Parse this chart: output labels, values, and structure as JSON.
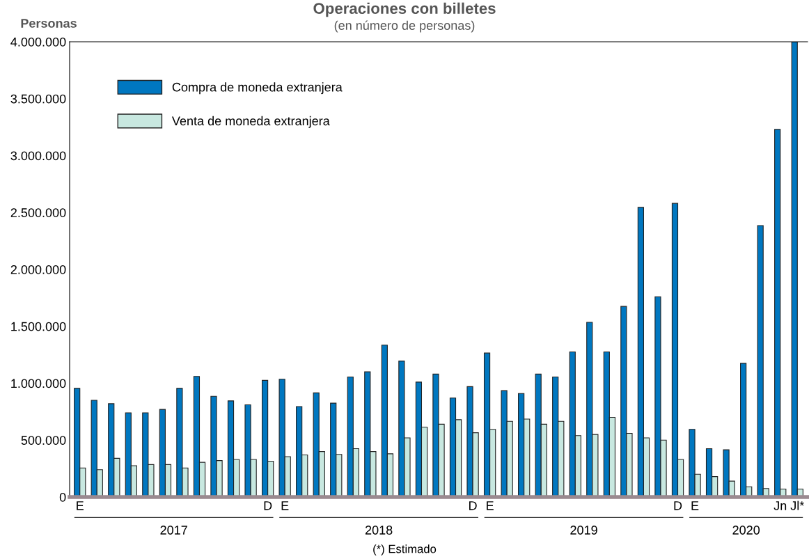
{
  "chart_data": {
    "type": "bar",
    "title": "Operaciones con billetes",
    "subtitle": "(en número de personas)",
    "ylabel": "Personas",
    "categories": [
      "E",
      null,
      null,
      null,
      null,
      null,
      null,
      null,
      null,
      null,
      null,
      "D",
      "E",
      null,
      null,
      null,
      null,
      null,
      null,
      null,
      null,
      null,
      null,
      "D",
      "E",
      null,
      null,
      null,
      null,
      null,
      null,
      null,
      null,
      null,
      null,
      "D",
      "E",
      null,
      null,
      null,
      null,
      "Jn",
      "Jl*"
    ],
    "series": [
      {
        "name": "Compra de moneda extranjera",
        "color": "#0077c0",
        "values": [
          955000,
          850000,
          820000,
          740000,
          740000,
          770000,
          955000,
          1060000,
          885000,
          845000,
          810000,
          1025000,
          1035000,
          795000,
          915000,
          825000,
          1055000,
          1100000,
          1335000,
          1195000,
          1010000,
          1080000,
          870000,
          970000,
          1265000,
          935000,
          910000,
          1080000,
          1055000,
          1275000,
          1535000,
          1275000,
          1675000,
          2545000,
          1760000,
          2580000,
          595000,
          425000,
          415000,
          1175000,
          2385000,
          3230000,
          4000000
        ]
      },
      {
        "name": "Venta de moneda extranjera",
        "color": "#c8e8e0",
        "values": [
          255000,
          240000,
          340000,
          275000,
          285000,
          285000,
          255000,
          305000,
          320000,
          330000,
          330000,
          315000,
          355000,
          370000,
          400000,
          375000,
          425000,
          400000,
          380000,
          520000,
          615000,
          640000,
          680000,
          565000,
          595000,
          665000,
          685000,
          640000,
          665000,
          540000,
          550000,
          700000,
          560000,
          520000,
          500000,
          330000,
          200000,
          180000,
          140000,
          90000,
          75000,
          70000,
          70000
        ]
      }
    ],
    "ylim": [
      0,
      4000000
    ],
    "yticks": [
      {
        "value": 0,
        "label": "0"
      },
      {
        "value": 500000,
        "label": "500.000"
      },
      {
        "value": 1000000,
        "label": "1.000.000"
      },
      {
        "value": 1500000,
        "label": "1.500.000"
      },
      {
        "value": 2000000,
        "label": "2.000.000"
      },
      {
        "value": 2500000,
        "label": "2.500.000"
      },
      {
        "value": 3000000,
        "label": "3.000.000"
      },
      {
        "value": 3500000,
        "label": "3.500.000"
      },
      {
        "value": 4000000,
        "label": "4.000.000"
      }
    ],
    "grid": false,
    "legend": "top left",
    "annotations": [
      "2017",
      "2018",
      "2019",
      "2020",
      "(*) Estimado"
    ]
  }
}
